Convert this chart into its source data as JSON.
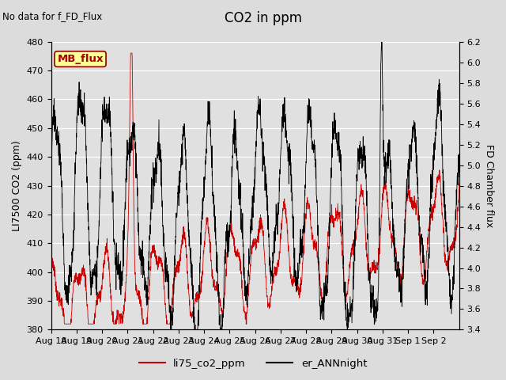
{
  "title": "CO2 in ppm",
  "annotation_top_left": "No data for f_FD_Flux",
  "legend_box_label": "MB_flux",
  "ylabel_left": "LI7500 CO2 (ppm)",
  "ylabel_right": "FD Chamber flux",
  "xlabel": "",
  "ylim_left": [
    380,
    480
  ],
  "ylim_right": [
    3.4,
    6.2
  ],
  "yticks_left": [
    380,
    390,
    400,
    410,
    420,
    430,
    440,
    450,
    460,
    470,
    480
  ],
  "yticks_right": [
    3.4,
    3.6,
    3.8,
    4.0,
    4.2,
    4.4,
    4.6,
    4.8,
    5.0,
    5.2,
    5.4,
    5.6,
    5.8,
    6.0,
    6.2
  ],
  "xtick_labels": [
    "Aug 18",
    "Aug 19",
    "Aug 20",
    "Aug 21",
    "Aug 22",
    "Aug 23",
    "Aug 24",
    "Aug 25",
    "Aug 26",
    "Aug 27",
    "Aug 28",
    "Aug 29",
    "Aug 30",
    "Aug 31",
    "Sep 1",
    "Sep 2"
  ],
  "legend_labels": [
    "li75_co2_ppm",
    "er_ANNnight"
  ],
  "line1_color": "#cc0000",
  "line2_color": "#000000",
  "background_color": "#e8e8e8",
  "legend_box_color": "#ffff99",
  "legend_box_border": "#880000",
  "grid_color": "#ffffff",
  "title_fontsize": 12,
  "label_fontsize": 9,
  "tick_fontsize": 8
}
